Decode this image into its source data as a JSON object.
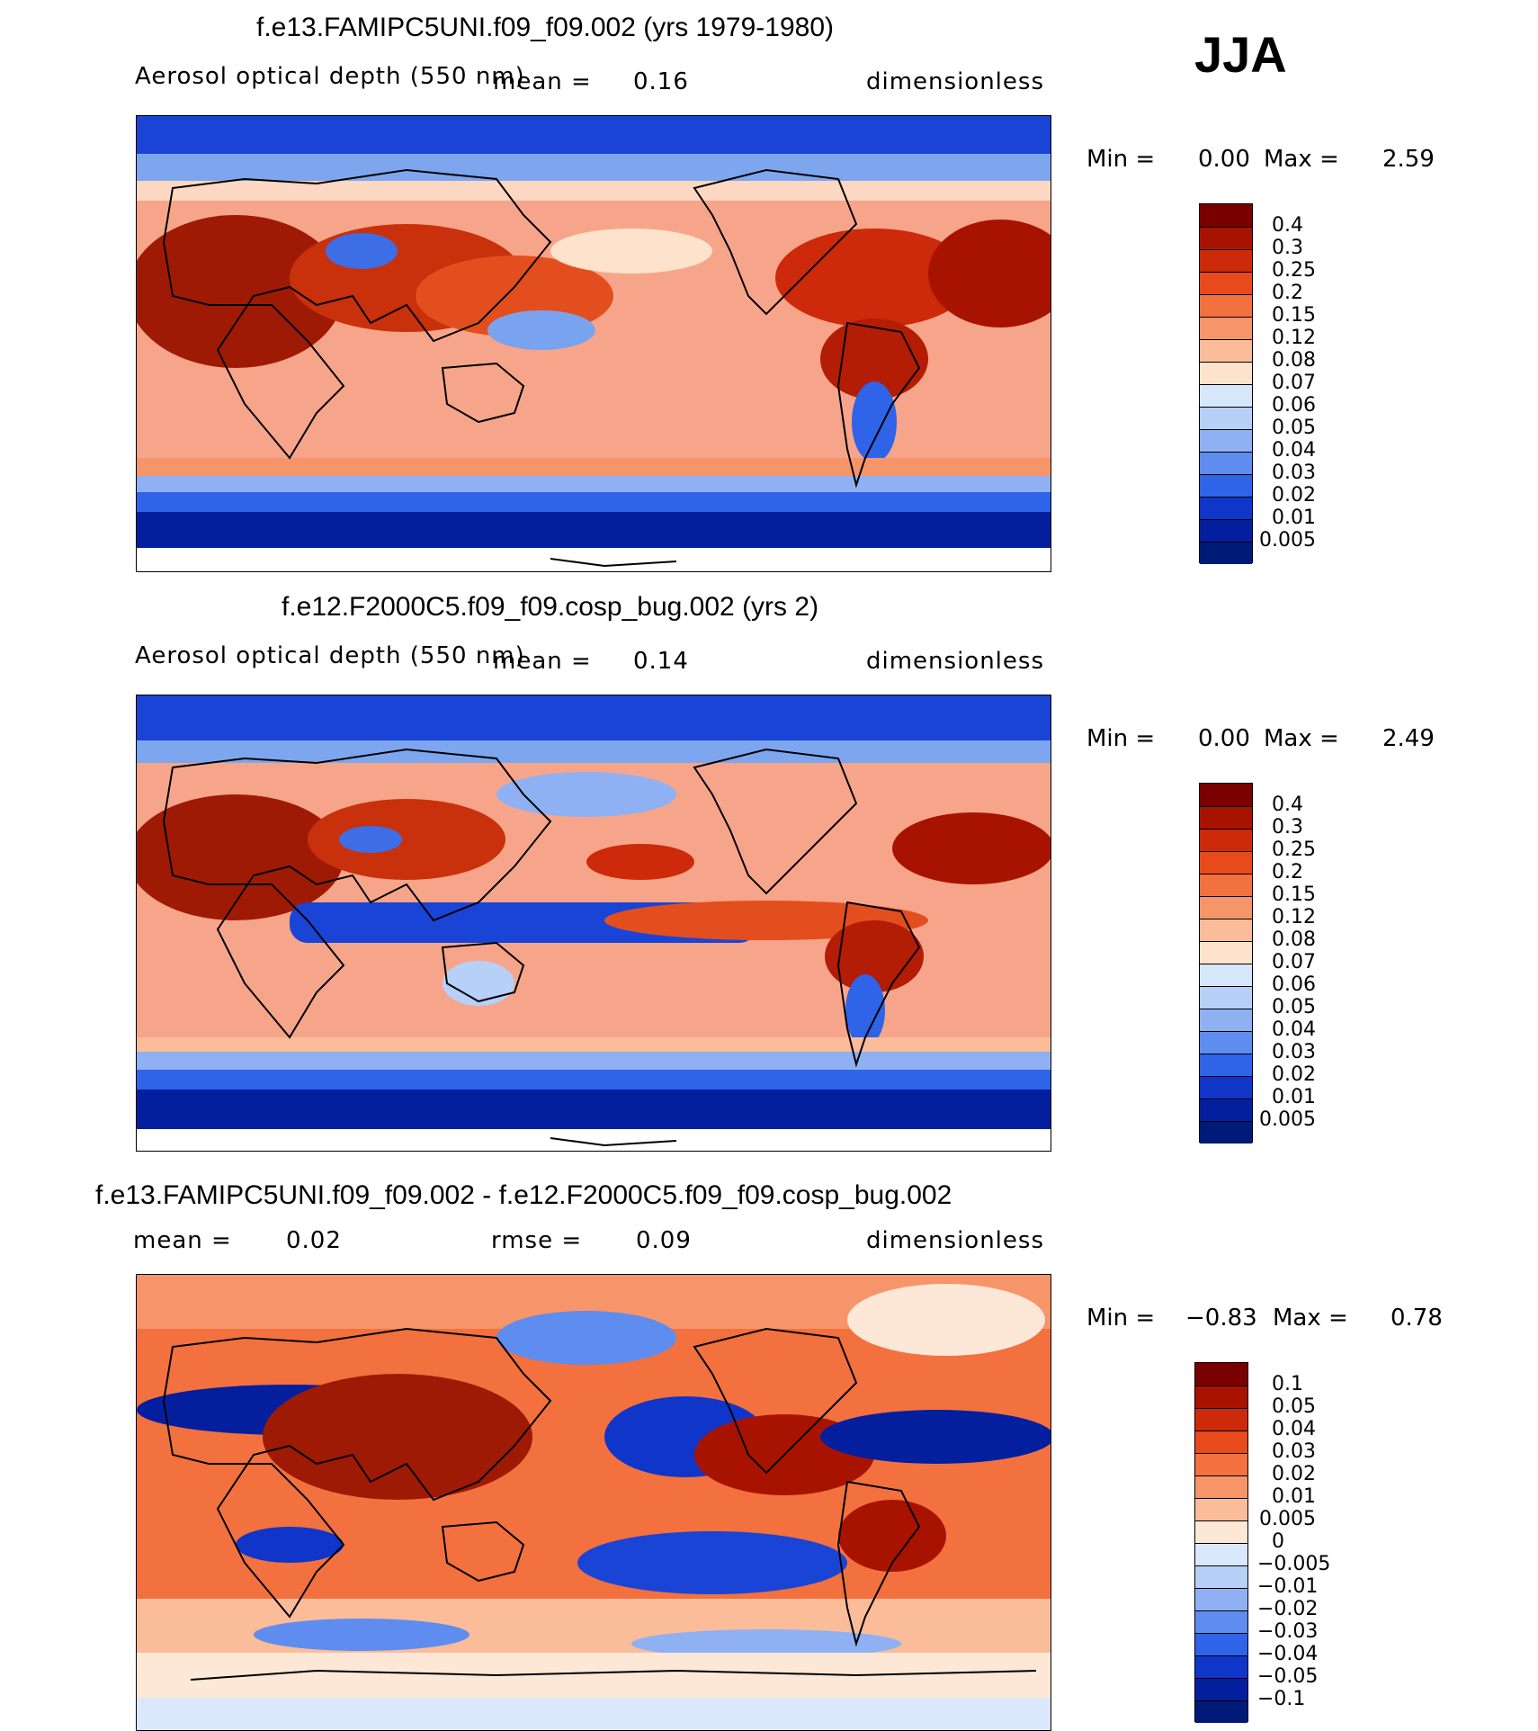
{
  "season": "JJA",
  "chart_data": [
    {
      "type": "heatmap",
      "title": "f.e13.FAMIPC5UNI.f09_f09.002 (yrs 1979-1980)",
      "variable": "Aerosol optical depth (550 nm)",
      "mean_label": "mean =",
      "mean": "0.16",
      "units": "dimensionless",
      "min_label": "Min =",
      "min": "0.00",
      "max_label": "Max =",
      "max": "2.59",
      "colorbar_levels": [
        "0.4",
        "0.3",
        "0.25",
        "0.2",
        "0.15",
        "0.12",
        "0.08",
        "0.07",
        "0.06",
        "0.05",
        "0.04",
        "0.03",
        "0.02",
        "0.01",
        "0.005"
      ],
      "colorbar_colors": [
        "#7a0000",
        "#a81300",
        "#cc2a0a",
        "#e84a1c",
        "#f2713e",
        "#f7956a",
        "#fbbc9a",
        "#fde2cc",
        "#d6e6fb",
        "#b6d0f8",
        "#8fb1f3",
        "#5f8def",
        "#2f63e8",
        "#1035c9",
        "#041f9e",
        "#001a78"
      ]
    },
    {
      "type": "heatmap",
      "title": "f.e12.F2000C5.f09_f09.cosp_bug.002 (yrs 2)",
      "variable": "Aerosol optical depth (550 nm)",
      "mean_label": "mean =",
      "mean": "0.14",
      "units": "dimensionless",
      "min_label": "Min =",
      "min": "0.00",
      "max_label": "Max =",
      "max": "2.49",
      "colorbar_levels": [
        "0.4",
        "0.3",
        "0.25",
        "0.2",
        "0.15",
        "0.12",
        "0.08",
        "0.07",
        "0.06",
        "0.05",
        "0.04",
        "0.03",
        "0.02",
        "0.01",
        "0.005"
      ],
      "colorbar_colors": [
        "#7a0000",
        "#a81300",
        "#cc2a0a",
        "#e84a1c",
        "#f2713e",
        "#f7956a",
        "#fbbc9a",
        "#fde2cc",
        "#d6e6fb",
        "#b6d0f8",
        "#8fb1f3",
        "#5f8def",
        "#2f63e8",
        "#1035c9",
        "#041f9e",
        "#001a78"
      ]
    },
    {
      "type": "heatmap",
      "title": "f.e13.FAMIPC5UNI.f09_f09.002 - f.e12.F2000C5.f09_f09.cosp_bug.002",
      "mean_label": "mean =",
      "mean": "0.02",
      "rmse_label": "rmse =",
      "rmse": "0.09",
      "units": "dimensionless",
      "min_label": "Min =",
      "min": "−0.83",
      "max_label": "Max =",
      "max": "0.78",
      "colorbar_levels": [
        "0.1",
        "0.05",
        "0.04",
        "0.03",
        "0.02",
        "0.01",
        "0.005",
        "0",
        "−0.005",
        "−0.01",
        "−0.02",
        "−0.03",
        "−0.04",
        "−0.05",
        "−0.1"
      ],
      "colorbar_colors": [
        "#7a0000",
        "#a81300",
        "#cc2a0a",
        "#e84a1c",
        "#f2713e",
        "#f7956a",
        "#fbbc9a",
        "#fde8d8",
        "#dbe8fb",
        "#b6d0f8",
        "#8fb1f3",
        "#5f8def",
        "#2f63e8",
        "#1035c9",
        "#041f9e",
        "#001a78"
      ]
    }
  ]
}
